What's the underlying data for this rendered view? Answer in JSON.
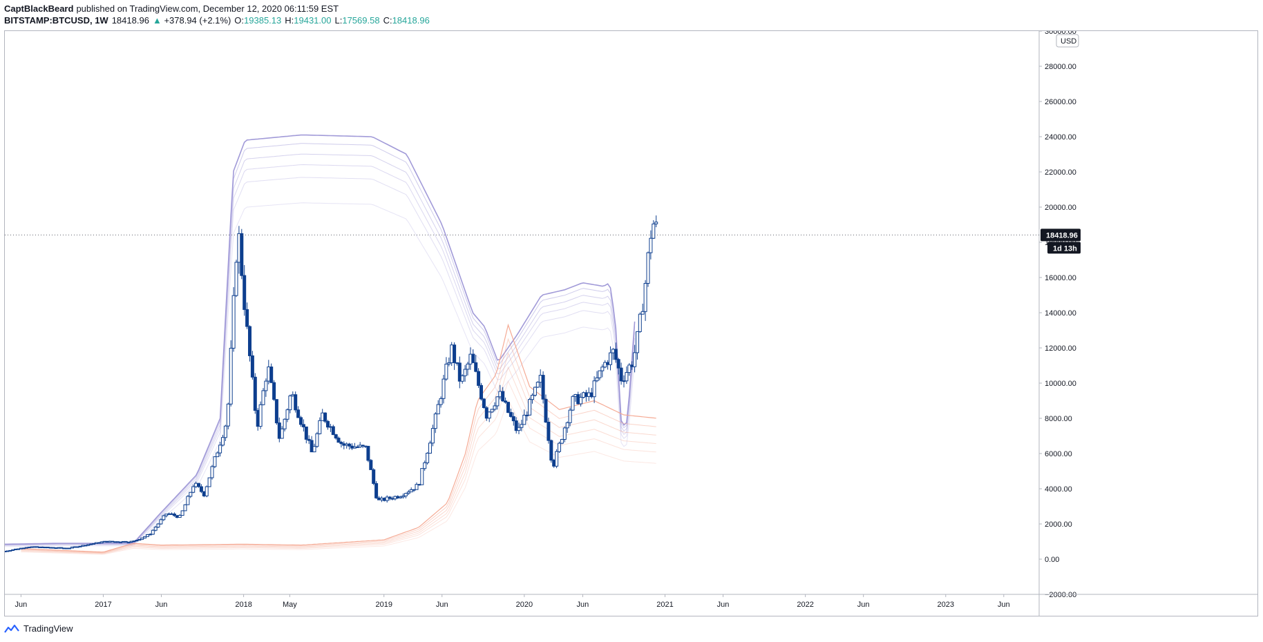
{
  "header": {
    "author": "CaptBlackBeard",
    "published": "published on TradingView.com, December 12, 2020 06:11:59 EST",
    "symbol": "BITSTAMP:BTCUSD, 1W",
    "last": "18418.96",
    "change_arrow": "▲",
    "change": "+378.94 (+2.1%)",
    "o_label": "O:",
    "o_value": "19385.13",
    "h_label": "H:",
    "h_value": "19431.00",
    "l_label": "L:",
    "l_value": "17569.58",
    "c_label": "C:",
    "c_value": "18418.96"
  },
  "footer": {
    "brand": "TradingView",
    "logo_icon": "tradingview-logo-icon"
  },
  "colors": {
    "up": "#26a69a",
    "candle": "#0d3e8e",
    "bull_band": "#7ec8b4",
    "bear_band": "#9c95d6",
    "red_band": "#f4a58e"
  },
  "chart_data": {
    "type": "line",
    "series_type": "candlestick",
    "currency": "USD",
    "ylim": [
      -2000,
      30000
    ],
    "y_ticks": [
      -2000,
      0,
      2000,
      4000,
      6000,
      8000,
      10000,
      12000,
      14000,
      16000,
      18000,
      20000,
      22000,
      24000,
      26000,
      28000,
      30000
    ],
    "y_tick_labels": [
      "−2000.00",
      "0.00",
      "2000.00",
      "4000.00",
      "6000.00",
      "8000.00",
      "10000.00",
      "12000.00",
      "14000.00",
      "16000.00",
      "18000.00",
      "20000.00",
      "22000.00",
      "24000.00",
      "26000.00",
      "28000.00",
      "30000.00"
    ],
    "x_range": [
      "2016-04-20",
      "2023-09-01"
    ],
    "x_ticks": [
      {
        "date": "2016-06-01",
        "label": "Jun"
      },
      {
        "date": "2017-01-01",
        "label": "2017"
      },
      {
        "date": "2017-06-01",
        "label": "Jun"
      },
      {
        "date": "2018-01-01",
        "label": "2018"
      },
      {
        "date": "2018-05-01",
        "label": "May"
      },
      {
        "date": "2019-01-01",
        "label": "2019"
      },
      {
        "date": "2019-06-01",
        "label": "Jun"
      },
      {
        "date": "2020-01-01",
        "label": "2020"
      },
      {
        "date": "2020-06-01",
        "label": "Jun"
      },
      {
        "date": "2021-01-01",
        "label": "2021"
      },
      {
        "date": "2021-06-01",
        "label": "Jun"
      },
      {
        "date": "2022-01-01",
        "label": "2022"
      },
      {
        "date": "2022-06-01",
        "label": "Jun"
      },
      {
        "date": "2023-01-01",
        "label": "2023"
      },
      {
        "date": "2023-06-01",
        "label": "Jun"
      }
    ],
    "last_price": 18418.96,
    "last_price_label": "18418.96",
    "countdown": "1d 13h",
    "price_close_trend": [
      {
        "date": "2016-04-20",
        "close": 450
      },
      {
        "date": "2016-06-20",
        "close": 700
      },
      {
        "date": "2016-10-01",
        "close": 620
      },
      {
        "date": "2017-01-01",
        "close": 990
      },
      {
        "date": "2017-03-20",
        "close": 1000
      },
      {
        "date": "2017-05-01",
        "close": 1400
      },
      {
        "date": "2017-06-15",
        "close": 2600
      },
      {
        "date": "2017-07-20",
        "close": 2400
      },
      {
        "date": "2017-08-25",
        "close": 4300
      },
      {
        "date": "2017-09-20",
        "close": 3700
      },
      {
        "date": "2017-10-20",
        "close": 5800
      },
      {
        "date": "2017-11-20",
        "close": 8000
      },
      {
        "date": "2017-12-17",
        "close": 19000
      },
      {
        "date": "2018-01-05",
        "close": 14000
      },
      {
        "date": "2018-02-05",
        "close": 7500
      },
      {
        "date": "2018-03-05",
        "close": 11000
      },
      {
        "date": "2018-04-05",
        "close": 6800
      },
      {
        "date": "2018-05-05",
        "close": 9500
      },
      {
        "date": "2018-06-28",
        "close": 6000
      },
      {
        "date": "2018-07-25",
        "close": 8200
      },
      {
        "date": "2018-09-15",
        "close": 6500
      },
      {
        "date": "2018-11-15",
        "close": 6300
      },
      {
        "date": "2018-12-15",
        "close": 3300
      },
      {
        "date": "2019-02-10",
        "close": 3600
      },
      {
        "date": "2019-04-01",
        "close": 4200
      },
      {
        "date": "2019-05-15",
        "close": 8000
      },
      {
        "date": "2019-06-25",
        "close": 12000
      },
      {
        "date": "2019-07-20",
        "close": 10000
      },
      {
        "date": "2019-08-15",
        "close": 11500
      },
      {
        "date": "2019-09-25",
        "close": 8200
      },
      {
        "date": "2019-10-28",
        "close": 9400
      },
      {
        "date": "2019-12-15",
        "close": 7200
      },
      {
        "date": "2020-02-12",
        "close": 10200
      },
      {
        "date": "2020-03-15",
        "close": 5200
      },
      {
        "date": "2020-05-05",
        "close": 9000
      },
      {
        "date": "2020-06-20",
        "close": 9300
      },
      {
        "date": "2020-07-25",
        "close": 11000
      },
      {
        "date": "2020-08-20",
        "close": 11800
      },
      {
        "date": "2020-09-10",
        "close": 10200
      },
      {
        "date": "2020-10-10",
        "close": 11300
      },
      {
        "date": "2020-10-25",
        "close": 13000
      },
      {
        "date": "2020-11-10",
        "close": 15500
      },
      {
        "date": "2020-11-25",
        "close": 18500
      },
      {
        "date": "2020-12-05",
        "close": 19300
      },
      {
        "date": "2020-12-12",
        "close": 18418.96
      }
    ],
    "bull_band_upper": [
      {
        "date": "2016-04-20",
        "v": 850
      },
      {
        "date": "2016-09-01",
        "v": 900
      },
      {
        "date": "2017-03-20",
        "v": 900
      },
      {
        "date": "2017-05-25",
        "v": 2500
      },
      {
        "date": "2017-09-01",
        "v": 4800
      },
      {
        "date": "2017-11-01",
        "v": 8000
      },
      {
        "date": "2017-12-05",
        "v": 22000
      },
      {
        "date": "2018-01-05",
        "v": 23800
      },
      {
        "date": "2018-06-01",
        "v": 24100
      },
      {
        "date": "2018-12-01",
        "v": 24000
      },
      {
        "date": "2019-03-01",
        "v": 23000
      },
      {
        "date": "2019-06-01",
        "v": 19000
      },
      {
        "date": "2019-08-20",
        "v": 14000
      },
      {
        "date": "2019-09-20",
        "v": 13200
      },
      {
        "date": "2019-10-25",
        "v": 11200
      },
      {
        "date": "2019-12-15",
        "v": 12800
      },
      {
        "date": "2020-02-15",
        "v": 15000
      },
      {
        "date": "2020-04-15",
        "v": 15300
      },
      {
        "date": "2020-06-01",
        "v": 15700
      },
      {
        "date": "2020-07-25",
        "v": 15500
      },
      {
        "date": "2020-08-10",
        "v": 15700
      },
      {
        "date": "2020-08-25",
        "v": 13500
      },
      {
        "date": "2020-09-10",
        "v": 7500
      },
      {
        "date": "2020-09-25",
        "v": 7800
      },
      {
        "date": "2020-10-20",
        "v": 15300
      }
    ],
    "red_band_lower": [
      {
        "date": "2016-06-01",
        "v": 600
      },
      {
        "date": "2017-01-01",
        "v": 400
      },
      {
        "date": "2017-03-20",
        "v": 900
      },
      {
        "date": "2017-06-01",
        "v": 800
      },
      {
        "date": "2018-01-01",
        "v": 850
      },
      {
        "date": "2018-06-01",
        "v": 800
      },
      {
        "date": "2019-01-01",
        "v": 1100
      },
      {
        "date": "2019-04-01",
        "v": 1800
      },
      {
        "date": "2019-06-15",
        "v": 3200
      },
      {
        "date": "2019-08-01",
        "v": 6000
      },
      {
        "date": "2019-09-01",
        "v": 9000
      },
      {
        "date": "2019-10-20",
        "v": 10500
      },
      {
        "date": "2019-11-20",
        "v": 13300
      },
      {
        "date": "2020-01-15",
        "v": 9800
      },
      {
        "date": "2020-04-01",
        "v": 8500
      },
      {
        "date": "2020-07-01",
        "v": 9000
      },
      {
        "date": "2020-09-15",
        "v": 8200
      },
      {
        "date": "2020-12-12",
        "v": 8000
      }
    ]
  }
}
